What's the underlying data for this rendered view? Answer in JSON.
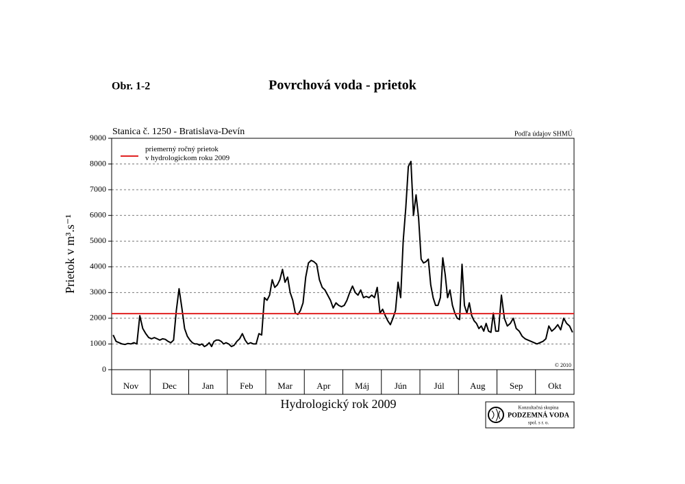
{
  "figure_label": "Obr. 1-2",
  "logo": {
    "line1": "Konzultačná skupina",
    "line2": "PODZEMNÁ VODA",
    "line3": "spol. s r. o."
  },
  "chart_data": {
    "type": "line",
    "title": "Povrchová voda - prietok",
    "subtitle": "Stanica č. 1250 - Bratislava-Devín",
    "source": "Podľa údajov SHMÚ",
    "copyright": "© 2010",
    "x_label": "Hydrologický rok 2009",
    "y_label": "Prietok v m³.s⁻¹",
    "categories": [
      "Nov",
      "Dec",
      "Jan",
      "Feb",
      "Mar",
      "Apr",
      "Máj",
      "Jún",
      "Júl",
      "Aug",
      "Sep",
      "Okt"
    ],
    "ylim": [
      0,
      9000
    ],
    "yticks": [
      0,
      1000,
      2000,
      3000,
      4000,
      5000,
      6000,
      7000,
      8000,
      9000
    ],
    "grid": true,
    "series": [
      {
        "color": "#000000",
        "values": [
          [
            1350,
            1100,
            1050,
            1000,
            980,
            1020,
            1000,
            1050,
            1000,
            2100,
            1600,
            1400,
            1250
          ],
          [
            1200,
            1250,
            1200,
            1150,
            1200,
            1180,
            1100,
            1050,
            1150,
            2300,
            3150,
            2400,
            1600,
            1300
          ],
          [
            1150,
            1050,
            1000,
            1000,
            950,
            1000,
            900,
            950,
            1050,
            900,
            1100,
            1150,
            1150,
            1100,
            1000,
            1050
          ],
          [
            1000,
            900,
            950,
            1100,
            1200,
            1400,
            1150,
            1000,
            1050,
            1000,
            1000,
            1400,
            1350,
            2800
          ],
          [
            2700,
            2900,
            3500,
            3200,
            3300,
            3500,
            3900,
            3400,
            3600,
            3000,
            2700,
            2200,
            2150,
            2300,
            2600
          ],
          [
            3600,
            4150,
            4250,
            4200,
            4100,
            3500,
            3200,
            3100,
            2900,
            2700,
            2400,
            2600,
            2500,
            2450
          ],
          [
            2500,
            2700,
            3000,
            3250,
            3000,
            2900,
            3100,
            2800,
            2850,
            2800,
            2900,
            2800,
            3200,
            2200
          ],
          [
            2350,
            2100,
            1900,
            1750,
            2000,
            2300,
            3400,
            2800,
            5000,
            6300,
            7900,
            8100,
            6000,
            6800,
            5900
          ],
          [
            4300,
            4150,
            4200,
            4300,
            3300,
            2800,
            2500,
            2500,
            2800,
            4350,
            3700,
            2800,
            3100,
            2500,
            2200,
            2000
          ],
          [
            1950,
            4100,
            2500,
            2200,
            2600,
            2100,
            1900,
            1800,
            1600,
            1700,
            1500,
            1800,
            1500,
            1450,
            2200,
            1500
          ],
          [
            1500,
            2900,
            2000,
            1700,
            1800,
            2000,
            1600,
            1500,
            1300,
            1200,
            1150,
            1100,
            1050
          ],
          [
            1000,
            1050,
            1100,
            1200,
            1700,
            1500,
            1600,
            1750,
            1550,
            2000,
            1800,
            1700,
            1450
          ]
        ]
      }
    ],
    "average": {
      "name": "priemerný ročný prietok\nv hydrologickom roku 2009",
      "value": 2180,
      "color": "#e02020"
    }
  }
}
